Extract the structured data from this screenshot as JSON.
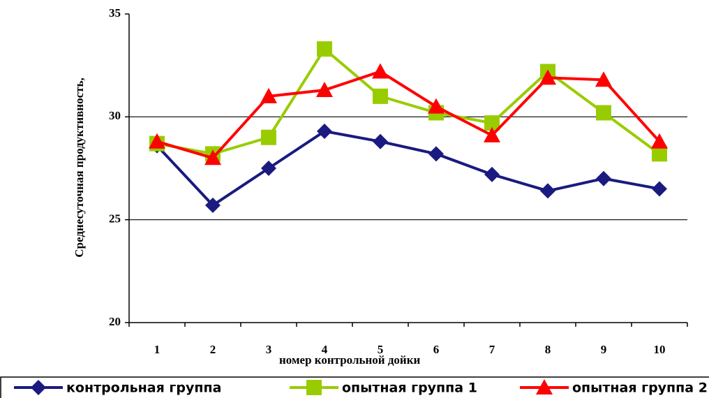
{
  "chart_data": {
    "type": "line",
    "y_label": "Среднесуточная продуктивность,",
    "x_label": "номер контрольной дойки",
    "categories": [
      "1",
      "2",
      "3",
      "4",
      "5",
      "6",
      "7",
      "8",
      "9",
      "10"
    ],
    "series": [
      {
        "name": "контрольная группа",
        "color": "#1a1a80",
        "marker": "diamond",
        "values": [
          28.6,
          25.7,
          27.5,
          29.3,
          28.8,
          28.2,
          27.2,
          26.4,
          27.0,
          26.5
        ]
      },
      {
        "name": "опытная группа 1",
        "color": "#99cc00",
        "marker": "square",
        "values": [
          28.7,
          28.2,
          29.0,
          33.3,
          31.0,
          30.2,
          29.7,
          32.2,
          30.2,
          28.2
        ]
      },
      {
        "name": "опытная группа 2",
        "color": "#ff0000",
        "marker": "triangle",
        "values": [
          28.8,
          28.0,
          31.0,
          31.3,
          32.2,
          30.5,
          29.1,
          31.9,
          31.8,
          28.8
        ]
      }
    ],
    "ylim": [
      20,
      35
    ],
    "yticks": [
      20,
      25,
      30,
      35
    ],
    "grid": true,
    "legend": "bottom"
  }
}
